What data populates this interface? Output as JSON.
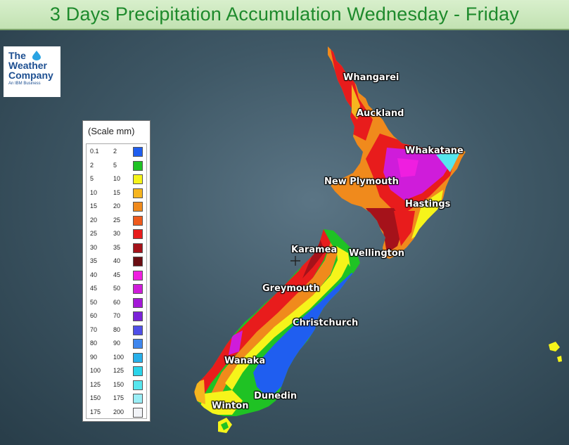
{
  "title": "3 Days Precipitation Accumulation Wednesday - Friday",
  "logo": {
    "line1": "The",
    "line2": "Weather",
    "line3": "Company",
    "tagline": "An IBM Business"
  },
  "legend": {
    "title": "(Scale mm)",
    "rows": [
      {
        "lo": "0.1",
        "hi": "2",
        "color": "#1f5ef0"
      },
      {
        "lo": "2",
        "hi": "5",
        "color": "#1fc224"
      },
      {
        "lo": "5",
        "hi": "10",
        "color": "#f6f41a"
      },
      {
        "lo": "10",
        "hi": "15",
        "color": "#f6b51f"
      },
      {
        "lo": "15",
        "hi": "20",
        "color": "#f08a1c"
      },
      {
        "lo": "20",
        "hi": "25",
        "color": "#ef5a1c"
      },
      {
        "lo": "25",
        "hi": "30",
        "color": "#e81c1c"
      },
      {
        "lo": "30",
        "hi": "35",
        "color": "#a5121a"
      },
      {
        "lo": "35",
        "hi": "40",
        "color": "#6a0d12"
      },
      {
        "lo": "40",
        "hi": "45",
        "color": "#ef1ee0"
      },
      {
        "lo": "45",
        "hi": "50",
        "color": "#cf1cda"
      },
      {
        "lo": "50",
        "hi": "60",
        "color": "#a418d8"
      },
      {
        "lo": "60",
        "hi": "70",
        "color": "#7a22d8"
      },
      {
        "lo": "70",
        "hi": "80",
        "color": "#4f4fe8"
      },
      {
        "lo": "80",
        "hi": "90",
        "color": "#3f87ee"
      },
      {
        "lo": "90",
        "hi": "100",
        "color": "#27b0ea"
      },
      {
        "lo": "100",
        "hi": "125",
        "color": "#2ad4ea"
      },
      {
        "lo": "125",
        "hi": "150",
        "color": "#56e6ee"
      },
      {
        "lo": "150",
        "hi": "175",
        "color": "#9aeef6"
      },
      {
        "lo": "175",
        "hi": "200",
        "color": "#f2f4f8"
      }
    ]
  },
  "cities": {
    "whangarei": "Whangarei",
    "auckland": "Auckland",
    "whakatane": "Whakatane",
    "new_plymouth": "New Plymouth",
    "hastings": "Hastings",
    "karamea": "Karamea",
    "wellington": "Wellington",
    "greymouth": "Greymouth",
    "christchurch": "Christchurch",
    "wanaka": "Wanaka",
    "dunedin": "Dunedin",
    "winton": "Winton"
  }
}
